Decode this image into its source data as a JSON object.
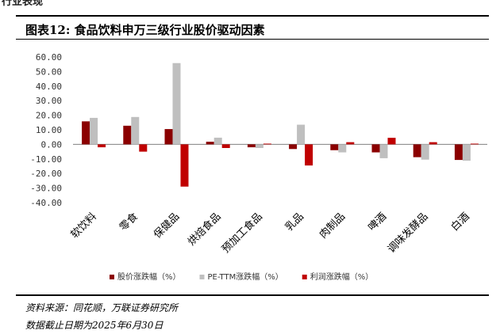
{
  "header_fragment": "行业表现",
  "title": "图表12:  食品饮料申万三级行业股价驱动因素",
  "chart_data": {
    "type": "bar",
    "categories": [
      "软饮料",
      "零食",
      "保健品",
      "烘焙食品",
      "预加工食品",
      "乳品",
      "肉制品",
      "啤酒",
      "调味发酵品",
      "白酒"
    ],
    "series": [
      {
        "name": "股价涨跌幅（%）",
        "color": "#8B0000",
        "values": [
          15.8,
          12.8,
          10.5,
          1.8,
          -2.0,
          -3.2,
          -4.0,
          -5.5,
          -8.8,
          -10.7
        ]
      },
      {
        "name": "PE-TTM涨跌幅（%）",
        "color": "#BFBFBF",
        "values": [
          18.2,
          18.8,
          55.8,
          4.6,
          -2.5,
          13.5,
          -5.5,
          -9.5,
          -10.5,
          -11.2
        ]
      },
      {
        "name": "利润涨跌幅（%）",
        "color": "#C00000",
        "values": [
          -2.0,
          -5.0,
          -29.0,
          -2.5,
          0.5,
          -14.5,
          1.5,
          4.5,
          1.5,
          0.5
        ]
      }
    ],
    "ylim": [
      -40,
      60
    ],
    "yticks": [
      "60.00",
      "50.00",
      "40.00",
      "30.00",
      "20.00",
      "10.00",
      "0.00",
      "-10.00",
      "-20.00",
      "-30.00",
      "-40.00"
    ],
    "grid": false,
    "legend_position": "bottom"
  },
  "footer": {
    "source": "资料来源：同花顺，万联证券研究所",
    "date_note": "数据截止日期为2025年6月30日"
  }
}
